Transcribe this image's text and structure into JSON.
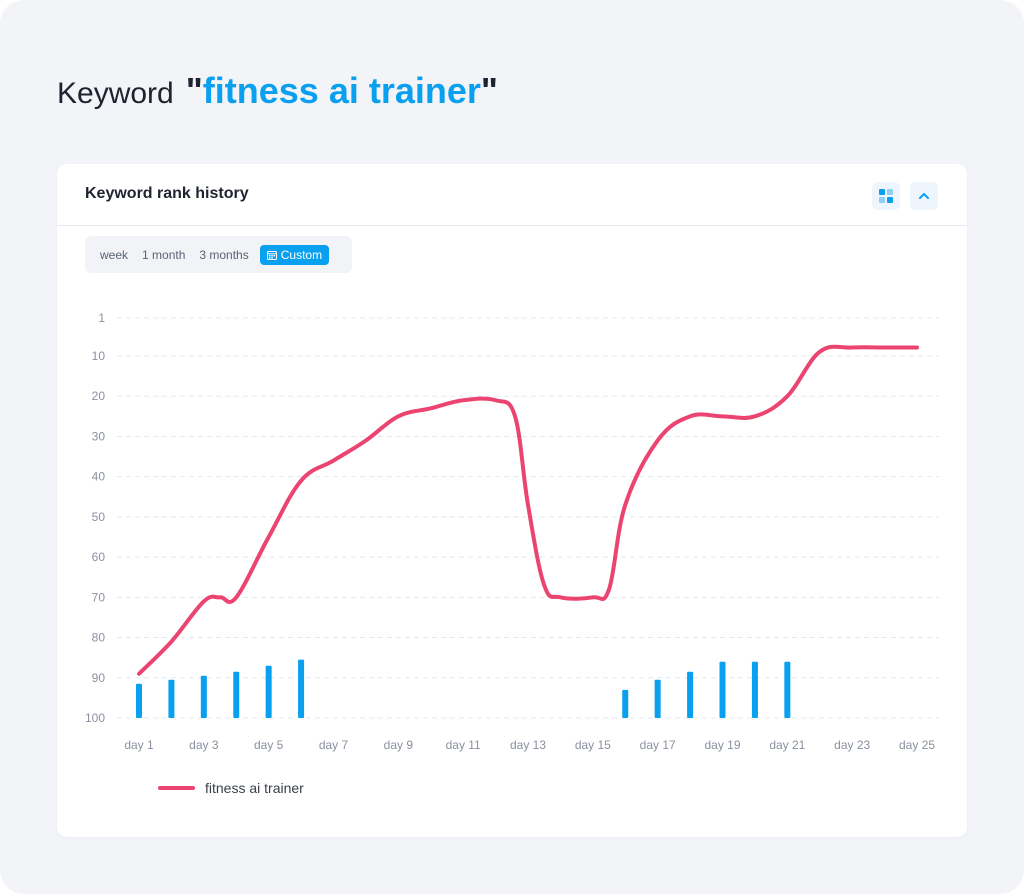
{
  "heading": {
    "prefix": "Keyword",
    "quote_open": "\"",
    "term": "fitness ai trainer",
    "quote_close": "\""
  },
  "card": {
    "title": "Keyword rank history",
    "icons": {
      "grid": "grid-view-icon",
      "collapse": "chevron-up-icon",
      "calendar": "calendar-icon"
    }
  },
  "period": {
    "options": [
      "week",
      "1 month",
      "3 months"
    ],
    "active": "Custom"
  },
  "legend": {
    "series_name": "fitness ai trainer"
  },
  "colors": {
    "accent": "#0aa0f0",
    "line": "#ec4470",
    "bar": "#0aa0f0",
    "grid": "#e4e7ee"
  },
  "chart_data": {
    "type": "line",
    "y_inverted": true,
    "ylim": [
      1,
      100
    ],
    "yticks": [
      1,
      10,
      20,
      30,
      40,
      50,
      60,
      70,
      80,
      90,
      100
    ],
    "x_tick_labels": [
      "day 1",
      "day 3",
      "day 5",
      "day 7",
      "day 9",
      "day 11",
      "day 13",
      "day 15",
      "day 17",
      "day 19",
      "day 21",
      "day 23",
      "day 25"
    ],
    "x": [
      1,
      2,
      3,
      3.5,
      4,
      5,
      6,
      7,
      8,
      9,
      10,
      11,
      12,
      12.6,
      13,
      13.5,
      14,
      15,
      15.5,
      16,
      17,
      18,
      19,
      20,
      21,
      22,
      23,
      24,
      25
    ],
    "series": [
      {
        "name": "fitness ai trainer",
        "values": [
          89,
          81,
          71,
          70,
          70,
          55,
          41,
          36,
          31,
          25,
          23,
          21,
          21,
          25,
          47,
          67,
          70,
          70,
          68,
          47,
          31,
          25,
          25,
          25,
          20,
          9,
          8,
          8,
          8
        ]
      }
    ],
    "bars": {
      "x": [
        1,
        2,
        3,
        4,
        5,
        6,
        16,
        17,
        18,
        19,
        20,
        21
      ],
      "heights": [
        8.5,
        9.5,
        10.5,
        11.5,
        13,
        14.5,
        7,
        9.5,
        11.5,
        14,
        14,
        14
      ]
    },
    "grid": true,
    "legend_position": "bottom-left"
  }
}
